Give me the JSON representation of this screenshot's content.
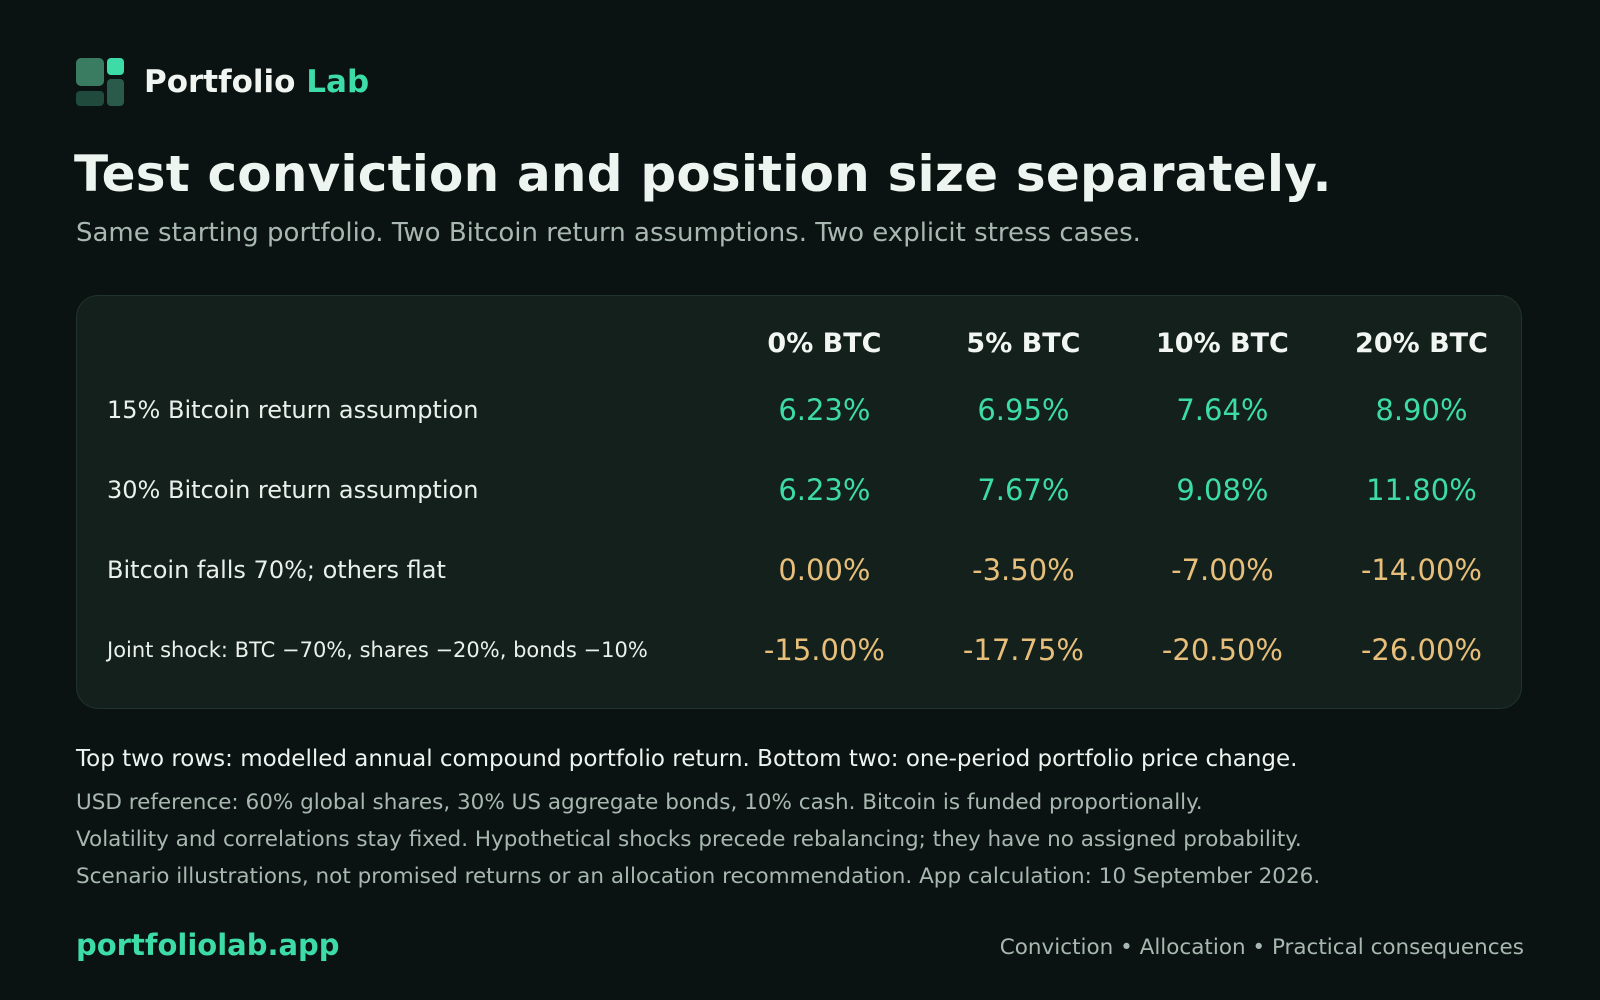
{
  "brand": {
    "name": "Portfolio",
    "accent": "Lab"
  },
  "title": "Test conviction and position size separately.",
  "subtitle": "Same starting portfolio. Two Bitcoin return assumptions. Two explicit stress cases.",
  "table": {
    "columns": [
      "0% BTC",
      "5% BTC",
      "10% BTC",
      "20% BTC"
    ],
    "rows": [
      {
        "label": "15% Bitcoin return assumption",
        "values": [
          "6.23%",
          "6.95%",
          "7.64%",
          "8.90%"
        ]
      },
      {
        "label": "30% Bitcoin return assumption",
        "values": [
          "6.23%",
          "7.67%",
          "9.08%",
          "11.80%"
        ]
      },
      {
        "label": "Bitcoin falls 70%; others flat",
        "values": [
          "0.00%",
          "-3.50%",
          "-7.00%",
          "-14.00%"
        ]
      },
      {
        "label": "Joint shock: BTC −70%, shares −20%, bonds −10%",
        "values": [
          "-15.00%",
          "-17.75%",
          "-20.50%",
          "-26.00%"
        ]
      }
    ]
  },
  "notes": {
    "primary": "Top two rows: modelled annual compound portfolio return. Bottom two: one-period portfolio price change.",
    "lines": [
      "USD reference: 60% global shares, 30% US aggregate bonds, 10% cash. Bitcoin is funded proportionally.",
      "Volatility and correlations stay fixed. Hypothetical shocks precede rebalancing; they have no assigned probability.",
      "Scenario illustrations, not promised returns or an allocation recommendation. App calculation: 10 September 2026."
    ]
  },
  "footer": {
    "url": "portfoliolab.app",
    "tagline": "Conviction • Allocation • Practical consequences"
  },
  "colors": {
    "accent": "#3ddba6",
    "warning": "#e7bf7a",
    "background": "#0a1311",
    "card": "#13201b"
  },
  "icons": {
    "logo": "grid-blocks-logo-icon"
  }
}
